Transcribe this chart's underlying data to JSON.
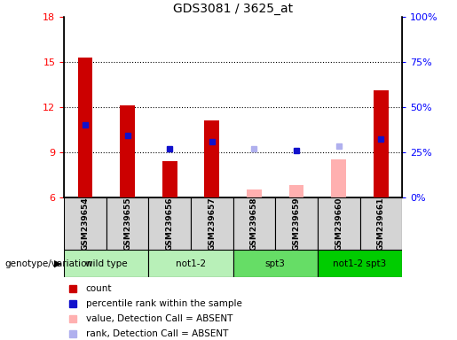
{
  "title": "GDS3081 / 3625_at",
  "samples": [
    "GSM239654",
    "GSM239655",
    "GSM239656",
    "GSM239657",
    "GSM239658",
    "GSM239659",
    "GSM239660",
    "GSM239661"
  ],
  "ylim_left": [
    6,
    18
  ],
  "ylim_right": [
    0,
    100
  ],
  "yticks_left": [
    6,
    9,
    12,
    15,
    18
  ],
  "yticks_right": [
    0,
    25,
    50,
    75,
    100
  ],
  "yticklabels_right": [
    "0%",
    "25%",
    "50%",
    "75%",
    "100%"
  ],
  "red_bars": [
    15.3,
    12.1,
    8.4,
    11.1,
    null,
    null,
    null,
    13.1
  ],
  "blue_dots": [
    10.8,
    10.1,
    9.2,
    9.7,
    null,
    9.1,
    null,
    9.9
  ],
  "pink_bars": [
    null,
    null,
    null,
    null,
    6.5,
    6.8,
    8.5,
    null
  ],
  "lightblue_dots": [
    null,
    null,
    null,
    null,
    9.2,
    null,
    9.4,
    null
  ],
  "bar_width": 0.35,
  "red_color": "#cc0000",
  "blue_color": "#1111cc",
  "pink_color": "#ffb0b0",
  "lightblue_color": "#b0b0ee",
  "group_info": [
    [
      0,
      1,
      "wild type",
      "#b8f0b8"
    ],
    [
      2,
      3,
      "not1-2",
      "#b8f0b8"
    ],
    [
      4,
      5,
      "spt3",
      "#66dd66"
    ],
    [
      6,
      7,
      "not1-2 spt3",
      "#00cc00"
    ]
  ]
}
